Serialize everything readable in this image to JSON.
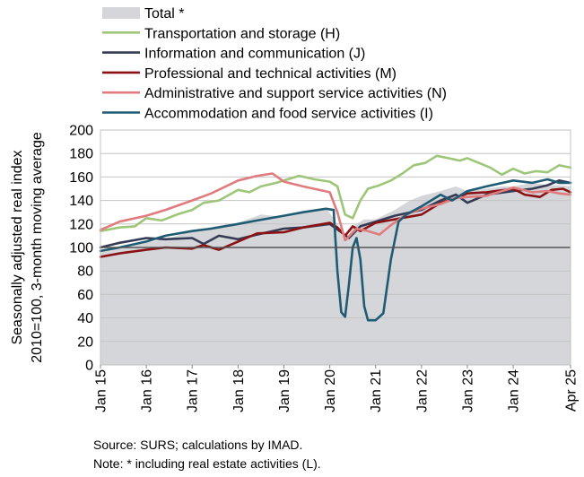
{
  "chart_data": {
    "type": "line",
    "ylabel_lines": [
      "Seasonally adjusted real index",
      "2010=100, 3-month moving average"
    ],
    "ylim": [
      0,
      200
    ],
    "yticks": [
      0,
      20,
      40,
      60,
      80,
      100,
      120,
      140,
      160,
      180,
      200
    ],
    "xlim": [
      "2015-01",
      "2025-04"
    ],
    "xticks": [
      {
        "label": "Jan 15",
        "t": "2015-01"
      },
      {
        "label": "Jan 16",
        "t": "2016-01"
      },
      {
        "label": "Jan 17",
        "t": "2017-01"
      },
      {
        "label": "Jan 18",
        "t": "2018-01"
      },
      {
        "label": "Jan 19",
        "t": "2019-01"
      },
      {
        "label": "Jan 20",
        "t": "2020-01"
      },
      {
        "label": "Jan 21",
        "t": "2021-01"
      },
      {
        "label": "Jan 22",
        "t": "2022-01"
      },
      {
        "label": "Jan 23",
        "t": "2023-01"
      },
      {
        "label": "Jan 24",
        "t": "2024-01"
      },
      {
        "label": "Apr 25",
        "t": "2025-04"
      }
    ],
    "reference_line": 100,
    "grid": "horizontal",
    "legend_position": "top",
    "series": [
      {
        "name": "Total *",
        "style": "area",
        "color": "#d4d6da",
        "points": [
          [
            "2015-01",
            98
          ],
          [
            "2015-07",
            100
          ],
          [
            "2016-01",
            104
          ],
          [
            "2016-07",
            108
          ],
          [
            "2017-01",
            114
          ],
          [
            "2017-07",
            118
          ],
          [
            "2018-01",
            121
          ],
          [
            "2018-07",
            128
          ],
          [
            "2019-01",
            126
          ],
          [
            "2019-07",
            131
          ],
          [
            "2019-12",
            134
          ],
          [
            "2020-03",
            120
          ],
          [
            "2020-05",
            104
          ],
          [
            "2020-07",
            118
          ],
          [
            "2020-10",
            124
          ],
          [
            "2021-01",
            124
          ],
          [
            "2021-06",
            132
          ],
          [
            "2021-10",
            140
          ],
          [
            "2022-01",
            144
          ],
          [
            "2022-06",
            148
          ],
          [
            "2022-10",
            152
          ],
          [
            "2023-01",
            148
          ],
          [
            "2023-06",
            150
          ],
          [
            "2023-10",
            152
          ],
          [
            "2024-01",
            152
          ],
          [
            "2024-06",
            155
          ],
          [
            "2024-10",
            153
          ],
          [
            "2025-01",
            153
          ],
          [
            "2025-04",
            152
          ]
        ]
      },
      {
        "name": "Transportation and storage (H)",
        "style": "line",
        "color": "#9dc679",
        "points": [
          [
            "2015-01",
            114
          ],
          [
            "2015-06",
            117
          ],
          [
            "2015-10",
            118
          ],
          [
            "2016-01",
            125
          ],
          [
            "2016-05",
            123
          ],
          [
            "2016-09",
            128
          ],
          [
            "2017-01",
            132
          ],
          [
            "2017-04",
            138
          ],
          [
            "2017-08",
            140
          ],
          [
            "2018-01",
            149
          ],
          [
            "2018-04",
            147
          ],
          [
            "2018-07",
            152
          ],
          [
            "2018-11",
            155
          ],
          [
            "2019-01",
            157
          ],
          [
            "2019-05",
            161
          ],
          [
            "2019-09",
            158
          ],
          [
            "2020-01",
            156
          ],
          [
            "2020-03",
            152
          ],
          [
            "2020-05",
            128
          ],
          [
            "2020-07",
            125
          ],
          [
            "2020-09",
            140
          ],
          [
            "2020-11",
            150
          ],
          [
            "2021-02",
            153
          ],
          [
            "2021-05",
            157
          ],
          [
            "2021-08",
            163
          ],
          [
            "2021-11",
            170
          ],
          [
            "2022-02",
            172
          ],
          [
            "2022-05",
            178
          ],
          [
            "2022-08",
            176
          ],
          [
            "2022-11",
            174
          ],
          [
            "2023-01",
            176
          ],
          [
            "2023-04",
            172
          ],
          [
            "2023-07",
            168
          ],
          [
            "2023-10",
            162
          ],
          [
            "2024-01",
            167
          ],
          [
            "2024-04",
            163
          ],
          [
            "2024-07",
            165
          ],
          [
            "2024-10",
            164
          ],
          [
            "2025-01",
            170
          ],
          [
            "2025-04",
            168
          ]
        ]
      },
      {
        "name": "Information and communication (J)",
        "style": "line",
        "color": "#363b55",
        "points": [
          [
            "2015-01",
            100
          ],
          [
            "2015-06",
            104
          ],
          [
            "2016-01",
            108
          ],
          [
            "2016-06",
            107
          ],
          [
            "2017-01",
            108
          ],
          [
            "2017-04",
            103
          ],
          [
            "2017-08",
            110
          ],
          [
            "2018-01",
            107
          ],
          [
            "2018-06",
            111
          ],
          [
            "2019-01",
            116
          ],
          [
            "2019-06",
            117
          ],
          [
            "2020-01",
            120
          ],
          [
            "2020-04",
            113
          ],
          [
            "2020-06",
            108
          ],
          [
            "2020-09",
            118
          ],
          [
            "2021-01",
            122
          ],
          [
            "2021-06",
            127
          ],
          [
            "2022-01",
            132
          ],
          [
            "2022-06",
            140
          ],
          [
            "2022-10",
            145
          ],
          [
            "2023-01",
            138
          ],
          [
            "2023-06",
            145
          ],
          [
            "2024-01",
            148
          ],
          [
            "2024-06",
            150
          ],
          [
            "2024-10",
            153
          ],
          [
            "2025-01",
            157
          ],
          [
            "2025-04",
            155
          ]
        ]
      },
      {
        "name": "Professional and technical activities (M)",
        "style": "line",
        "color": "#8b1214",
        "points": [
          [
            "2015-01",
            92
          ],
          [
            "2015-06",
            95
          ],
          [
            "2016-01",
            98
          ],
          [
            "2016-06",
            100
          ],
          [
            "2017-01",
            99
          ],
          [
            "2017-04",
            102
          ],
          [
            "2017-08",
            98
          ],
          [
            "2018-01",
            105
          ],
          [
            "2018-06",
            112
          ],
          [
            "2019-01",
            113
          ],
          [
            "2019-06",
            117
          ],
          [
            "2020-01",
            121
          ],
          [
            "2020-03",
            117
          ],
          [
            "2020-05",
            110
          ],
          [
            "2020-07",
            118
          ],
          [
            "2020-09",
            114
          ],
          [
            "2021-01",
            121
          ],
          [
            "2021-06",
            124
          ],
          [
            "2022-01",
            128
          ],
          [
            "2022-06",
            138
          ],
          [
            "2022-10",
            142
          ],
          [
            "2023-01",
            146
          ],
          [
            "2023-06",
            147
          ],
          [
            "2024-01",
            150
          ],
          [
            "2024-04",
            145
          ],
          [
            "2024-08",
            143
          ],
          [
            "2024-11",
            149
          ],
          [
            "2025-02",
            150
          ],
          [
            "2025-04",
            147
          ]
        ]
      },
      {
        "name": "Administrative and support service activities (N)",
        "style": "line",
        "color": "#e07b7e",
        "points": [
          [
            "2015-01",
            115
          ],
          [
            "2015-06",
            122
          ],
          [
            "2016-01",
            127
          ],
          [
            "2016-06",
            132
          ],
          [
            "2017-01",
            140
          ],
          [
            "2017-06",
            146
          ],
          [
            "2018-01",
            157
          ],
          [
            "2018-06",
            161
          ],
          [
            "2018-10",
            163
          ],
          [
            "2019-01",
            156
          ],
          [
            "2019-06",
            152
          ],
          [
            "2020-01",
            147
          ],
          [
            "2020-03",
            130
          ],
          [
            "2020-05",
            106
          ],
          [
            "2020-08",
            116
          ],
          [
            "2020-11",
            114
          ],
          [
            "2021-02",
            111
          ],
          [
            "2021-05",
            119
          ],
          [
            "2021-09",
            128
          ],
          [
            "2022-01",
            133
          ],
          [
            "2022-06",
            137
          ],
          [
            "2022-10",
            142
          ],
          [
            "2023-01",
            143
          ],
          [
            "2023-06",
            144
          ],
          [
            "2024-01",
            151
          ],
          [
            "2024-06",
            147
          ],
          [
            "2024-10",
            148
          ],
          [
            "2025-01",
            146
          ],
          [
            "2025-04",
            145
          ]
        ]
      },
      {
        "name": "Accommodation and food service activities (I)",
        "style": "line",
        "color": "#1f5b73",
        "points": [
          [
            "2015-01",
            97
          ],
          [
            "2015-06",
            100
          ],
          [
            "2016-01",
            105
          ],
          [
            "2016-06",
            110
          ],
          [
            "2017-01",
            114
          ],
          [
            "2017-06",
            116
          ],
          [
            "2018-01",
            120
          ],
          [
            "2018-06",
            123
          ],
          [
            "2019-01",
            127
          ],
          [
            "2019-06",
            130
          ],
          [
            "2019-12",
            133
          ],
          [
            "2020-02",
            132
          ],
          [
            "2020-03",
            80
          ],
          [
            "2020-04",
            45
          ],
          [
            "2020-05",
            41
          ],
          [
            "2020-06",
            68
          ],
          [
            "2020-07",
            100
          ],
          [
            "2020-08",
            108
          ],
          [
            "2020-09",
            90
          ],
          [
            "2020-10",
            50
          ],
          [
            "2020-11",
            38
          ],
          [
            "2021-01",
            38
          ],
          [
            "2021-03",
            44
          ],
          [
            "2021-05",
            90
          ],
          [
            "2021-07",
            122
          ],
          [
            "2021-09",
            128
          ],
          [
            "2022-01",
            135
          ],
          [
            "2022-06",
            145
          ],
          [
            "2022-09",
            140
          ],
          [
            "2023-01",
            148
          ],
          [
            "2023-06",
            152
          ],
          [
            "2024-01",
            157
          ],
          [
            "2024-06",
            155
          ],
          [
            "2024-10",
            158
          ],
          [
            "2025-01",
            155
          ],
          [
            "2025-04",
            155
          ]
        ]
      }
    ]
  },
  "footnotes": {
    "source": "Source:  SURS; calculations by IMAD.",
    "note": "Note: * including real estate activities (L)."
  }
}
